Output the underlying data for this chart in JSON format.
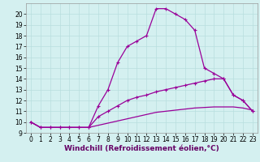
{
  "x": [
    0,
    1,
    2,
    3,
    4,
    5,
    6,
    7,
    8,
    9,
    10,
    11,
    12,
    13,
    14,
    15,
    16,
    17,
    18,
    19,
    20,
    21,
    22,
    23
  ],
  "line1_y": [
    10.0,
    9.5,
    9.5,
    9.5,
    9.5,
    9.5,
    9.5,
    11.5,
    13.0,
    15.5,
    17.0,
    17.5,
    18.0,
    20.5,
    20.5,
    20.0,
    19.5,
    18.5,
    15.0,
    14.5,
    14.0,
    12.5,
    12.0,
    11.0
  ],
  "line2_y": [
    10.0,
    9.5,
    9.5,
    9.5,
    9.5,
    9.5,
    9.5,
    10.5,
    11.0,
    11.5,
    12.0,
    12.3,
    12.5,
    12.8,
    13.0,
    13.2,
    13.4,
    13.6,
    13.8,
    14.0,
    14.0,
    12.5,
    12.0,
    11.0
  ],
  "line3_y": [
    10.0,
    9.5,
    9.5,
    9.5,
    9.5,
    9.5,
    9.5,
    9.7,
    9.9,
    10.1,
    10.3,
    10.5,
    10.7,
    10.9,
    11.0,
    11.1,
    11.2,
    11.3,
    11.35,
    11.4,
    11.4,
    11.4,
    11.3,
    11.1
  ],
  "line_color": "#990099",
  "bg_color": "#d4f0f0",
  "grid_color": "#b8dede",
  "xlabel": "Windchill (Refroidissement éolien,°C)",
  "xlim": [
    -0.5,
    23.5
  ],
  "ylim": [
    9,
    21
  ],
  "xticks": [
    0,
    1,
    2,
    3,
    4,
    5,
    6,
    7,
    8,
    9,
    10,
    11,
    12,
    13,
    14,
    15,
    16,
    17,
    18,
    19,
    20,
    21,
    22,
    23
  ],
  "yticks": [
    9,
    10,
    11,
    12,
    13,
    14,
    15,
    16,
    17,
    18,
    19,
    20
  ],
  "marker": "+",
  "markersize": 3.5,
  "linewidth": 0.9,
  "xlabel_fontsize": 6.5,
  "tick_fontsize": 5.5
}
